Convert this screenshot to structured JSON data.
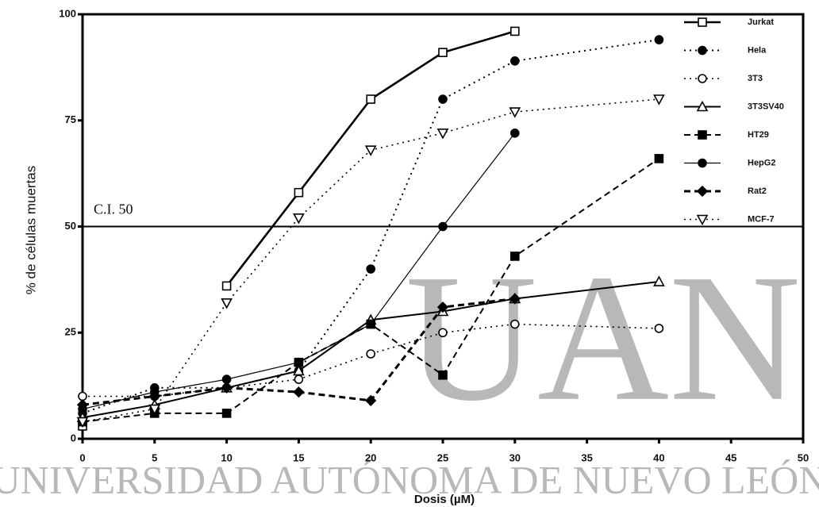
{
  "watermark": {
    "text": "UNIVERSIDAD AUTÓNOMA DE NUEVO LEÓN",
    "logo": "UAN"
  },
  "chart_data": {
    "type": "line",
    "x_label": "Dosis (µM)",
    "y_label": "% de células muertas",
    "x": [
      0,
      5,
      10,
      15,
      20,
      25,
      30,
      40
    ],
    "xlim": [
      0,
      50
    ],
    "xticks": [
      0,
      5,
      10,
      15,
      20,
      25,
      30,
      35,
      40,
      45,
      50
    ],
    "ylim": [
      0,
      100
    ],
    "yticks": [
      0,
      25,
      50,
      75,
      100
    ],
    "grid": false,
    "legend": "upper right",
    "reference_line": {
      "value": 50,
      "label": "C.I. 50"
    },
    "series": [
      {
        "name": "Jurkat",
        "color": "#000000",
        "dash": "solid",
        "width": 2.6,
        "marker": "square-open",
        "values": [
          3,
          null,
          36,
          58,
          80,
          91,
          96,
          null
        ]
      },
      {
        "name": "Hela",
        "color": "#000000",
        "dash": "dot",
        "width": 2,
        "marker": "circle-filled",
        "values": [
          6,
          12,
          12,
          16,
          40,
          80,
          89,
          94
        ]
      },
      {
        "name": "3T3",
        "color": "#000000",
        "dash": "dot",
        "width": 1.6,
        "marker": "circle-open",
        "values": [
          10,
          10,
          12,
          14,
          20,
          25,
          27,
          26
        ]
      },
      {
        "name": "3T3SV40",
        "color": "#000000",
        "dash": "solid",
        "width": 2,
        "marker": "triangle-open",
        "values": [
          5,
          8,
          12,
          16,
          28,
          30,
          33,
          37
        ]
      },
      {
        "name": "HT29",
        "color": "#000000",
        "dash": "dash",
        "width": 2,
        "marker": "square-filled",
        "values": [
          4,
          6,
          6,
          18,
          27,
          15,
          43,
          66
        ]
      },
      {
        "name": "HepG2",
        "color": "#000000",
        "dash": "solid",
        "width": 1.2,
        "marker": "circle-filled",
        "values": [
          7,
          11,
          14,
          18,
          27,
          50,
          72,
          null
        ]
      },
      {
        "name": "Rat2",
        "color": "#000000",
        "dash": "dash",
        "width": 3,
        "marker": "diamond-filled",
        "values": [
          8,
          10,
          12,
          11,
          9,
          31,
          33,
          null
        ]
      },
      {
        "name": "MCF-7",
        "color": "#000000",
        "dash": "dot",
        "width": 1.6,
        "marker": "tridown-open",
        "values": [
          4,
          7,
          32,
          52,
          68,
          72,
          77,
          80
        ]
      }
    ]
  }
}
